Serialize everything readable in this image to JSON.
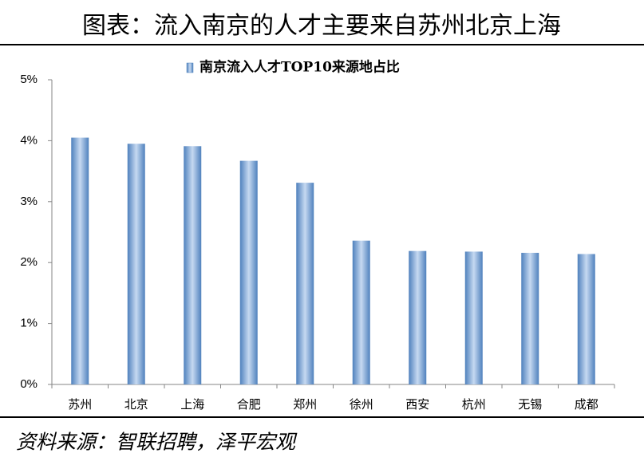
{
  "header": {
    "title": "图表：流入南京的人才主要来自苏州北京上海"
  },
  "chart_data": {
    "type": "bar",
    "title": "南京流入人才TOP10来源地占比",
    "categories": [
      "苏州",
      "北京",
      "上海",
      "合肥",
      "郑州",
      "徐州",
      "西安",
      "杭州",
      "无锡",
      "成都"
    ],
    "series": [
      {
        "name": "南京流入人才TOP10来源地占比",
        "color": "#4f81bd",
        "values": [
          4.05,
          3.95,
          3.91,
          3.67,
          3.31,
          2.36,
          2.19,
          2.18,
          2.16,
          2.14
        ]
      }
    ],
    "ylim": [
      0,
      5
    ],
    "yticks": [
      {
        "value": 0,
        "label": "0%"
      },
      {
        "value": 1,
        "label": "1%"
      },
      {
        "value": 2,
        "label": "2%"
      },
      {
        "value": 3,
        "label": "3%"
      },
      {
        "value": 4,
        "label": "4%"
      },
      {
        "value": 5,
        "label": "5%"
      }
    ],
    "grid": false,
    "legend": "top"
  },
  "footer": {
    "source": "资料来源：智联招聘，泽平宏观"
  }
}
